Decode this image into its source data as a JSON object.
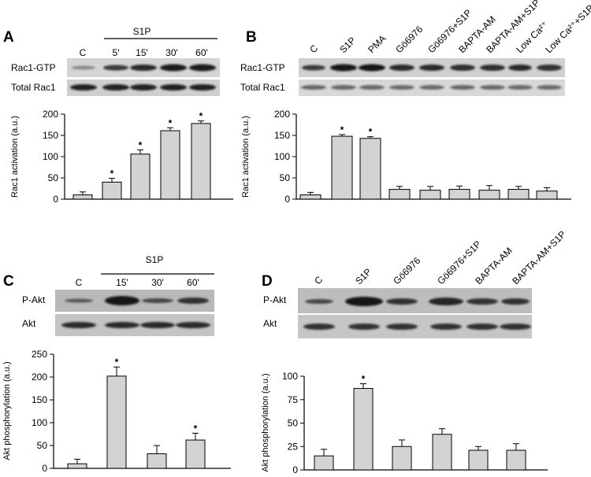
{
  "chart_data": [
    {
      "panel": "A",
      "type": "bar",
      "blot_header": "S1P",
      "lane_labels": [
        "C",
        "5'",
        "15'",
        "30'",
        "60'"
      ],
      "blot_rows": [
        "Rac1-GTP",
        "Total Rac1"
      ],
      "categories": [
        "C",
        "5'",
        "15'",
        "30'",
        "60'"
      ],
      "values": [
        10,
        40,
        106,
        161,
        178
      ],
      "errors": [
        7,
        9,
        10,
        7,
        6
      ],
      "significant": [
        false,
        true,
        true,
        true,
        true
      ],
      "ylabel": "Rac1 activation (a.u.)",
      "ylim": [
        0,
        200
      ],
      "yticks": [
        0,
        50,
        100,
        150,
        200
      ]
    },
    {
      "panel": "B",
      "type": "bar",
      "lane_labels": [
        "C",
        "S1P",
        "PMA",
        "Gö6976",
        "Gö6976+S1P",
        "BAPTA-AM",
        "BAPTA-AM+S1P",
        "Low Ca²⁺",
        "Low Ca²⁺+S1P"
      ],
      "blot_rows": [
        "Rac1-GTP",
        "Total Rac1"
      ],
      "categories": [
        "C",
        "S1P",
        "PMA",
        "Gö6976",
        "Gö6976+S1P",
        "BAPTA-AM",
        "BAPTA-AM+S1P",
        "Low Ca²⁺",
        "Low Ca²⁺+S1P"
      ],
      "values": [
        10,
        148,
        143,
        23,
        21,
        23,
        21,
        23,
        19
      ],
      "errors": [
        6,
        4,
        4,
        7,
        9,
        8,
        11,
        7,
        8
      ],
      "significant": [
        false,
        true,
        true,
        false,
        false,
        false,
        false,
        false,
        false
      ],
      "ylabel": "Rac1 activation (a.u.)",
      "ylim": [
        0,
        200
      ],
      "yticks": [
        0,
        50,
        100,
        150,
        200
      ]
    },
    {
      "panel": "C",
      "type": "bar",
      "blot_header": "S1P",
      "lane_labels": [
        "C",
        "15'",
        "30'",
        "60'"
      ],
      "blot_rows": [
        "P-Akt",
        "Akt"
      ],
      "categories": [
        "C",
        "15'",
        "30'",
        "60'"
      ],
      "values": [
        10,
        202,
        32,
        62
      ],
      "errors": [
        10,
        20,
        18,
        15
      ],
      "significant": [
        false,
        true,
        false,
        true
      ],
      "ylabel": "Akt phosphorylation (a.u.)",
      "ylim": [
        0,
        250
      ],
      "yticks": [
        0,
        50,
        100,
        150,
        200,
        250
      ]
    },
    {
      "panel": "D",
      "type": "bar",
      "lane_labels": [
        "C",
        "S1P",
        "Gö6976",
        "Gö6976+S1P",
        "BAPTA-AM",
        "BAPTA-AM+S1P"
      ],
      "blot_rows": [
        "P-Akt",
        "Akt"
      ],
      "categories": [
        "C",
        "S1P",
        "Gö6976",
        "Gö6976+S1P",
        "BAPTA-AM",
        "BAPTA-AM+S1P"
      ],
      "values": [
        15,
        87,
        25,
        38,
        21,
        21
      ],
      "errors": [
        7,
        5,
        7,
        6,
        4,
        7
      ],
      "significant": [
        false,
        true,
        false,
        false,
        false,
        false
      ],
      "ylabel": "Akt phosphorylation (a.u.)",
      "ylim": [
        0,
        100
      ],
      "yticks": [
        0,
        25,
        50,
        75,
        100
      ]
    }
  ]
}
